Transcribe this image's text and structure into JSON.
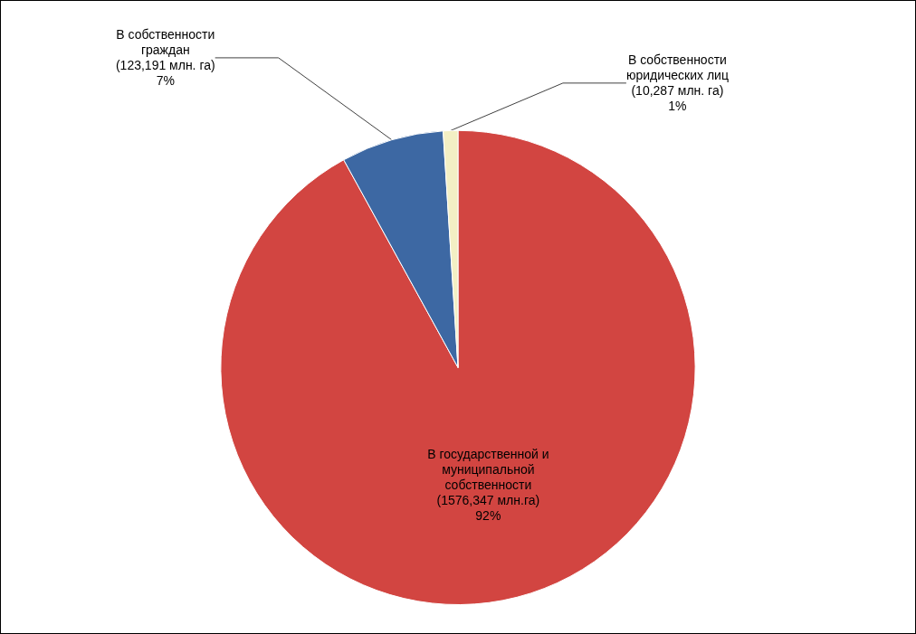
{
  "chart_data": {
    "type": "pie",
    "categories": [
      "В государственной и муниципальной собственности",
      "В собственности граждан",
      "В собственности юридических лиц"
    ],
    "values": [
      92,
      7,
      1
    ],
    "value_labels": [
      "(1576,347 млн.га)\n92%",
      "(123,191 млн. га)\n7%",
      "(10,287 млн. га)\n1%"
    ],
    "colors": [
      "#d24541",
      "#3d68a3",
      "#f3efc4"
    ],
    "legend": false
  }
}
